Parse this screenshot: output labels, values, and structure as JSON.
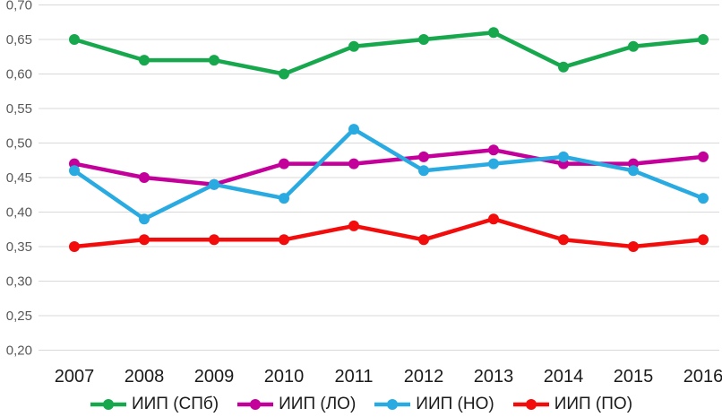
{
  "chart_data": {
    "type": "line",
    "title": "",
    "xlabel": "",
    "ylabel": "",
    "categories": [
      "2007",
      "2008",
      "2009",
      "2010",
      "2011",
      "2012",
      "2013",
      "2014",
      "2015",
      "2016"
    ],
    "series": [
      {
        "id": "iip-spb",
        "name": "ИИП (СПб)",
        "color": "#17a84e",
        "values": [
          0.65,
          0.62,
          0.62,
          0.6,
          0.64,
          0.65,
          0.66,
          0.61,
          0.64,
          0.65
        ]
      },
      {
        "id": "iip-lo",
        "name": "ИИП (ЛО)",
        "color": "#c4009b",
        "values": [
          0.47,
          0.45,
          0.44,
          0.47,
          0.47,
          0.48,
          0.49,
          0.47,
          0.47,
          0.48
        ]
      },
      {
        "id": "iip-no",
        "name": "ИИП (НО)",
        "color": "#29abe2",
        "values": [
          0.46,
          0.39,
          0.44,
          0.42,
          0.52,
          0.46,
          0.47,
          0.48,
          0.46,
          0.42
        ]
      },
      {
        "id": "iip-po",
        "name": "ИИП (ПО)",
        "color": "#f20c0c",
        "values": [
          0.35,
          0.36,
          0.36,
          0.36,
          0.38,
          0.36,
          0.39,
          0.36,
          0.35,
          0.36
        ]
      }
    ],
    "ylim": [
      0.2,
      0.7
    ],
    "ytick_step": 0.05,
    "ytick_labels": [
      "0,20",
      "0,25",
      "0,30",
      "0,35",
      "0,40",
      "0,45",
      "0,50",
      "0,55",
      "0,60",
      "0,65",
      "0,70"
    ],
    "grid": true,
    "legend_position": "bottom",
    "decimal_separator": ","
  },
  "style": {
    "gridline_color": "#d9d9d9",
    "ytick_color": "#595959",
    "xtick_color": "#1a1a1a",
    "background": "#ffffff"
  }
}
